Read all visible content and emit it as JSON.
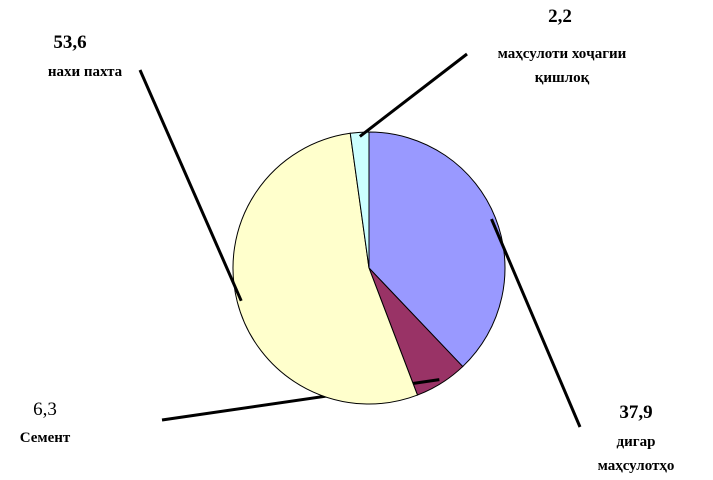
{
  "chart_data": {
    "type": "pie",
    "categories": [
      "дигар\nмаҳсулотҳо",
      "Семент",
      "нахи пахта",
      "маҳсулоти хоҷагии\nқишлоқ"
    ],
    "values": [
      37.9,
      6.3,
      53.6,
      2.2
    ],
    "value_labels": [
      "37,9",
      "6,3",
      "53,6",
      "2,2"
    ],
    "colors": [
      "#9999ff",
      "#993366",
      "#ffffcc",
      "#ccffff"
    ]
  }
}
